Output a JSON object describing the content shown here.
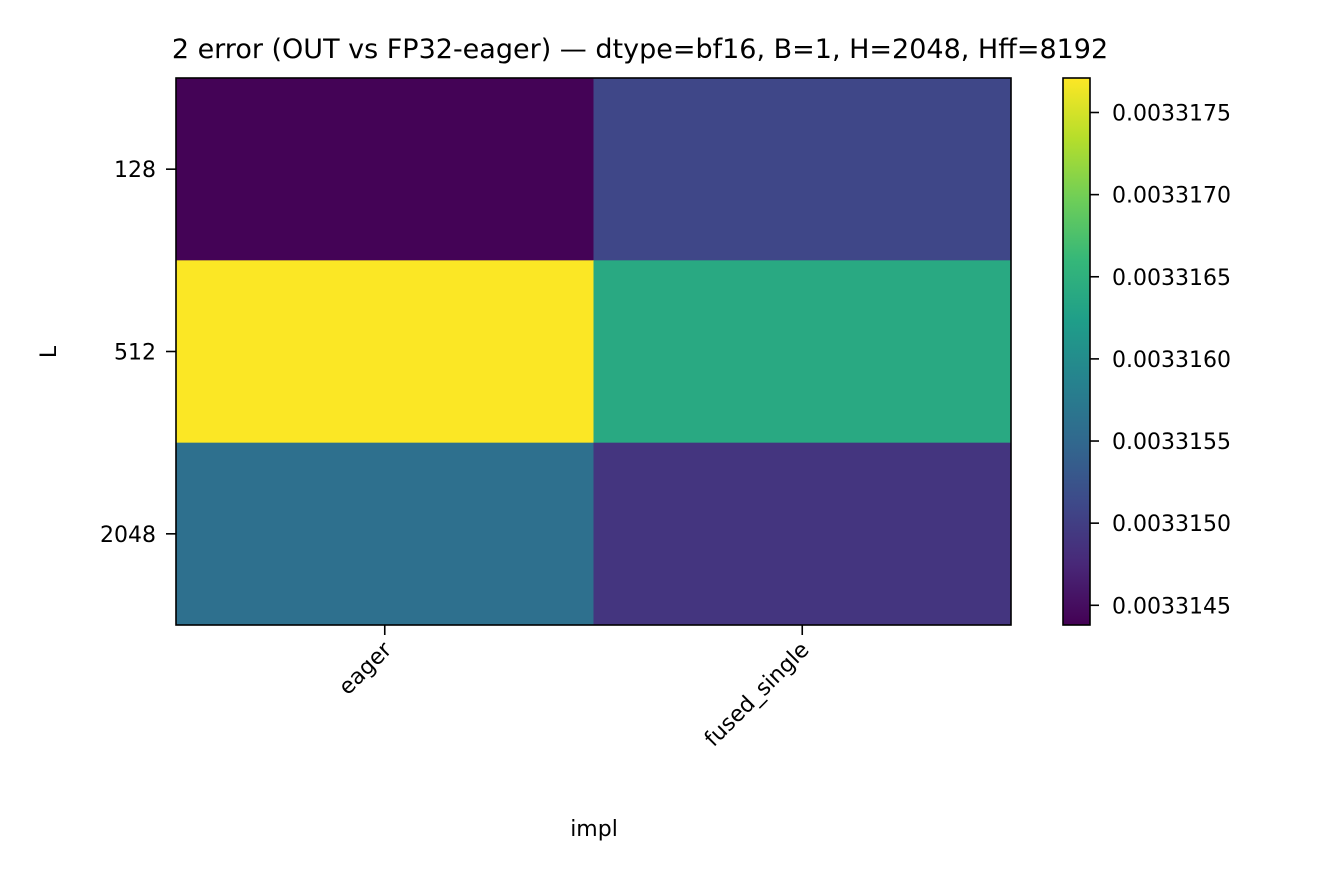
{
  "chart_data": {
    "type": "heatmap",
    "title": "2 error (OUT vs FP32-eager) — dtype=bf16, B=1, H=2048, Hff=8192",
    "xlabel": "impl",
    "ylabel": "L",
    "x_categories": [
      "eager",
      "fused_single"
    ],
    "y_categories": [
      "128",
      "512",
      "2048"
    ],
    "values": [
      [
        0.0033144,
        0.0033151
      ],
      [
        0.0033177,
        0.0033164
      ],
      [
        0.0033156,
        0.0033149
      ]
    ],
    "colormap": "viridis",
    "colorbar": {
      "min": 0.00331438,
      "max": 0.00331771,
      "ticks": [
        0.0033145,
        0.003315,
        0.0033155,
        0.003316,
        0.0033165,
        0.003317,
        0.0033175
      ],
      "tick_labels": [
        "0.0033145",
        "0.0033150",
        "0.0033155",
        "0.0033160",
        "0.0033165",
        "0.0033170",
        "0.0033175"
      ]
    }
  }
}
